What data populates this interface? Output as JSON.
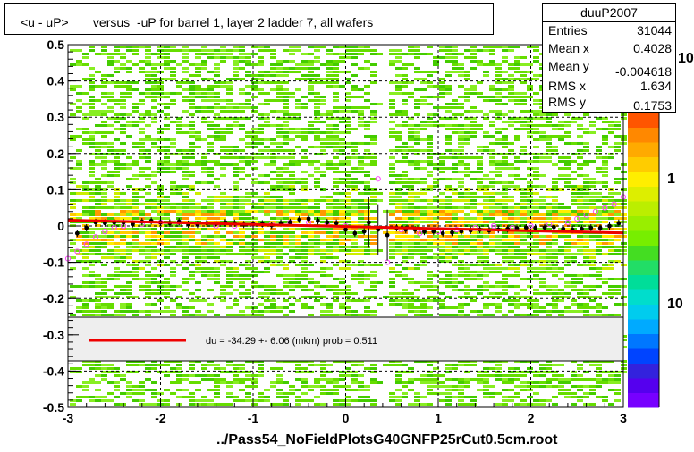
{
  "title": "<u - uP>       versus  -uP for barrel 1, layer 2 ladder 7, all wafers",
  "x_axis_title": "../Pass54_NoFieldPlotsG40GNFP25rCut0.5cm.root",
  "stats": {
    "name": "duuP2007",
    "rows": [
      {
        "label": "Entries",
        "value": "31044"
      },
      {
        "label": "Mean x",
        "value": "0.4028"
      },
      {
        "label": "Mean y",
        "value": "-0.004618"
      },
      {
        "label": "RMS x",
        "value": "1.634"
      },
      {
        "label": "RMS y",
        "value": "0.1753"
      }
    ]
  },
  "fit_legend": "du =  -34.29 +-  6.06 (mkm) prob = 0.511",
  "palette_labels": [
    "10",
    "1",
    "10"
  ],
  "colors": {
    "fit_line": "#ee0000",
    "profile_markers": "#000000",
    "open_markers": "#ff44ff"
  },
  "chart_data": {
    "type": "heatmap",
    "title": "<u - uP>       versus  -uP for barrel 1, layer 2 ladder 7, all wafers",
    "xlim": [
      -3,
      3
    ],
    "ylim": [
      -0.5,
      0.5
    ],
    "x_ticks": [
      "-3",
      "-2",
      "-1",
      "0",
      "1",
      "2",
      "3"
    ],
    "y_ticks": [
      "-0.5",
      "-0.4",
      "-0.3",
      "-0.2",
      "-0.1",
      "0",
      "0.1",
      "0.2",
      "0.3",
      "0.4",
      "0.5"
    ],
    "grid": true,
    "density_gap_x": [
      0.3,
      0.45
    ],
    "profile_filled": {
      "x": [
        -2.9,
        -2.8,
        -2.7,
        -2.6,
        -2.5,
        -2.4,
        -2.3,
        -2.2,
        -2.1,
        -2.0,
        -1.9,
        -1.8,
        -1.7,
        -1.6,
        -1.5,
        -1.4,
        -1.3,
        -1.2,
        -1.1,
        -1.0,
        -0.9,
        -0.8,
        -0.7,
        -0.6,
        -0.5,
        -0.4,
        -0.3,
        -0.2,
        -0.1,
        0.0,
        0.1,
        0.2,
        0.25,
        0.35,
        0.45,
        0.55,
        0.65,
        0.75,
        0.85,
        0.95,
        1.05,
        1.15,
        1.25,
        1.35,
        1.45,
        1.55,
        1.65,
        1.75,
        1.85,
        1.95,
        2.05,
        2.15,
        2.25,
        2.35,
        2.45,
        2.55,
        2.65,
        2.75,
        2.85,
        2.95
      ],
      "y": [
        -0.02,
        -0.005,
        0.01,
        0.008,
        0.01,
        0.01,
        0.006,
        0.012,
        0.014,
        0.01,
        0.008,
        0.012,
        0.005,
        0.004,
        0.008,
        0.006,
        0.01,
        0.008,
        0.004,
        0.005,
        0.006,
        0.002,
        0.008,
        0.01,
        0.018,
        0.02,
        0.014,
        0.01,
        0.008,
        -0.01,
        -0.02,
        -0.015,
        0.01,
        -0.01,
        -0.025,
        -0.005,
        -0.01,
        -0.01,
        -0.015,
        -0.015,
        -0.02,
        -0.018,
        -0.015,
        -0.012,
        -0.01,
        -0.012,
        -0.01,
        -0.008,
        -0.006,
        -0.005,
        -0.005,
        -0.004,
        -0.003,
        -0.008,
        -0.01,
        -0.008,
        -0.005,
        -0.006,
        0.0,
        0.008
      ]
    },
    "profile_open": {
      "x": [
        -3.0,
        -2.9,
        -2.8,
        -2.7,
        -2.6,
        -2.5,
        -2.4,
        -2.2,
        -2.0,
        -1.8,
        -1.6,
        -1.4,
        -1.2,
        -1.0,
        -0.8,
        -0.6,
        -0.4,
        -0.2,
        0.0,
        0.35,
        0.45,
        0.6,
        0.8,
        1.0,
        1.2,
        1.4,
        1.6,
        1.8,
        2.0,
        2.2,
        2.4,
        2.5,
        2.6,
        2.7,
        2.8,
        2.9,
        3.0
      ],
      "y": [
        -0.09,
        -0.07,
        -0.05,
        -0.03,
        -0.015,
        -0.005,
        0.0,
        0.005,
        0.01,
        0.01,
        0.005,
        0.0,
        0.0,
        0.005,
        0.005,
        0.01,
        0.01,
        0.005,
        0.0,
        0.13,
        -0.1,
        -0.01,
        -0.02,
        -0.015,
        -0.01,
        -0.005,
        0.0,
        -0.005,
        0.0,
        0.005,
        0.01,
        0.02,
        0.03,
        0.04,
        0.05,
        0.06,
        0.08
      ]
    },
    "fit": {
      "x": [
        -3.0,
        3.0
      ],
      "y": [
        0.016,
        -0.019
      ]
    }
  }
}
